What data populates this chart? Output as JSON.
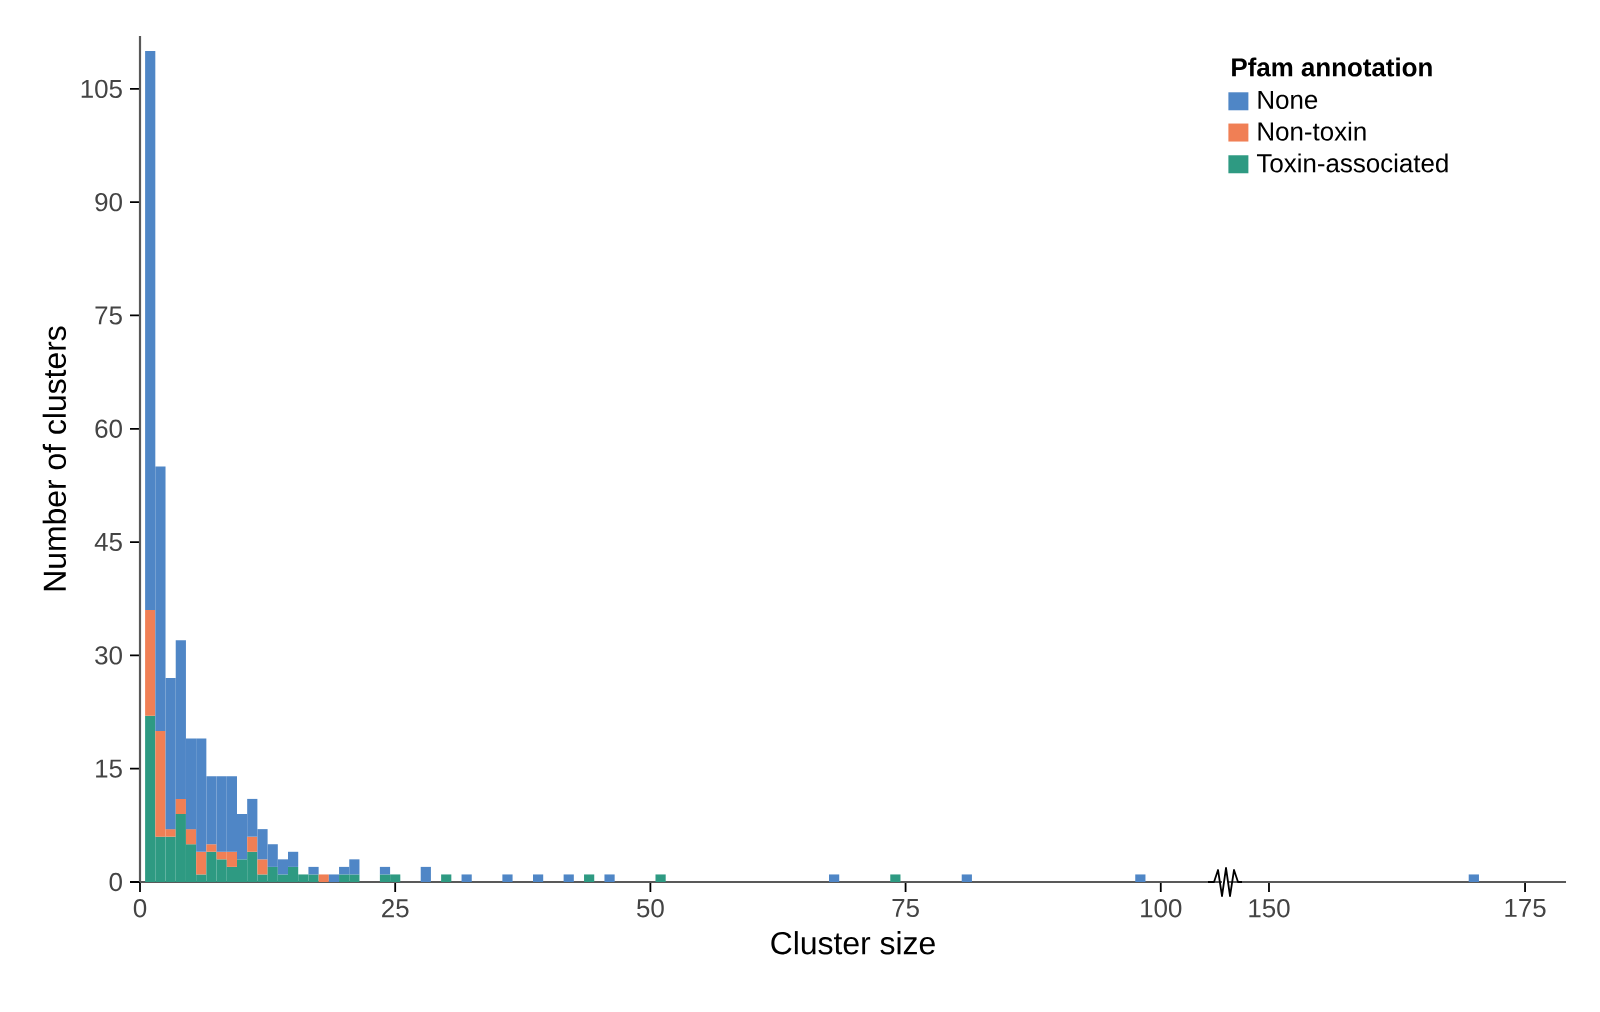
{
  "chart_data": [
    {
      "type": "bar",
      "stacked": true,
      "xlabel": "Cluster size",
      "ylabel": "Number of clusters",
      "legend_title": "Pfam annotation",
      "legend": "top right",
      "x": [
        1,
        2,
        3,
        4,
        5,
        6,
        7,
        8,
        9,
        10,
        11,
        12,
        13,
        14,
        15,
        16,
        17,
        18,
        19,
        20,
        21,
        24,
        25,
        28,
        30,
        32,
        36,
        39,
        42,
        44,
        46,
        51,
        68,
        74,
        81,
        98
      ],
      "xlim": [
        0,
        106
      ],
      "xticks": [
        0,
        25,
        50,
        75,
        100
      ],
      "ylim": [
        0,
        112
      ],
      "yticks": [
        0,
        15,
        30,
        45,
        60,
        75,
        90,
        105
      ],
      "series": [
        {
          "name": "Toxin-associated",
          "color": "#2e9a82",
          "values": [
            22,
            6,
            6,
            9,
            5,
            1,
            4,
            3,
            2,
            3,
            4,
            1,
            2,
            1,
            2,
            1,
            1,
            0,
            0,
            1,
            1,
            1,
            1,
            0,
            1,
            0,
            0,
            0,
            0,
            1,
            0,
            1,
            0,
            1,
            0,
            0
          ]
        },
        {
          "name": "Non-toxin",
          "color": "#f07f55",
          "values": [
            14,
            14,
            1,
            2,
            2,
            3,
            1,
            1,
            2,
            0,
            2,
            2,
            0,
            0,
            0,
            0,
            0,
            1,
            0,
            0,
            0,
            0,
            0,
            0,
            0,
            0,
            0,
            0,
            0,
            0,
            0,
            0,
            0,
            0,
            0,
            0
          ]
        },
        {
          "name": "None",
          "color": "#4f86c6",
          "values": [
            74,
            35,
            20,
            21,
            12,
            15,
            9,
            10,
            10,
            6,
            5,
            4,
            3,
            2,
            2,
            0,
            1,
            0,
            1,
            1,
            2,
            1,
            0,
            2,
            0,
            1,
            1,
            1,
            1,
            0,
            1,
            0,
            1,
            0,
            1,
            1
          ]
        }
      ]
    },
    {
      "type": "bar",
      "stacked": true,
      "x": [
        170
      ],
      "xlim": [
        146,
        179
      ],
      "xticks": [
        150,
        175
      ],
      "yticks": [
        0,
        15,
        30,
        45,
        60,
        75,
        90,
        105
      ],
      "tick_labels": "x",
      "series": [
        {
          "color": "#2e9a82",
          "values": [
            null
          ]
        },
        {
          "color": "#f07f55",
          "values": [
            null
          ]
        },
        {
          "color": "#4f86c6",
          "values": [
            1
          ]
        }
      ]
    }
  ]
}
